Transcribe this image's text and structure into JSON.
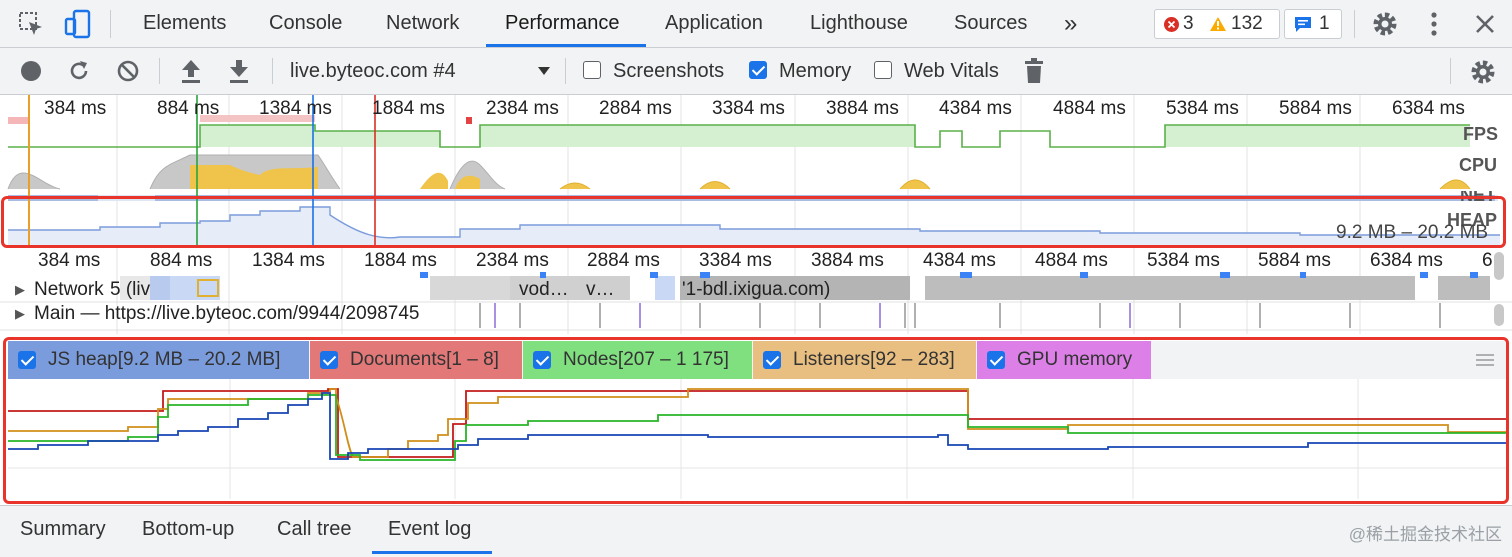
{
  "tabs": [
    {
      "label": "Elements"
    },
    {
      "label": "Console"
    },
    {
      "label": "Network"
    },
    {
      "label": "Performance"
    },
    {
      "label": "Application"
    },
    {
      "label": "Lighthouse"
    },
    {
      "label": "Sources"
    }
  ],
  "more_tabs_glyph": "»",
  "status": {
    "errors": "3",
    "warnings": "132",
    "messages": "1"
  },
  "toolbar": {
    "profile_select": "live.byteoc.com #4",
    "screenshots_label": "Screenshots",
    "memory_label": "Memory",
    "web_vitals_label": "Web Vitals",
    "screenshots_checked": false,
    "memory_checked": true,
    "web_vitals_checked": false
  },
  "overview": {
    "ticks": [
      "384 ms",
      "884 ms",
      "1384 ms",
      "1884 ms",
      "2384 ms",
      "2884 ms",
      "3384 ms",
      "3884 ms",
      "4384 ms",
      "4884 ms",
      "5384 ms",
      "5884 ms",
      "6384 ms"
    ],
    "fps_label": "FPS",
    "cpu_label": "CPU",
    "net_label": "NET",
    "heap_label": "HEAP",
    "heap_range": "9.2 MB – 20.2 MB"
  },
  "flame": {
    "ticks": [
      "384 ms",
      "884 ms",
      "1384 ms",
      "1884 ms",
      "2384 ms",
      "2884 ms",
      "3384 ms",
      "3884 ms",
      "4384 ms",
      "4884 ms",
      "5384 ms",
      "5884 ms",
      "6384 ms",
      "6"
    ],
    "network_track": "Network",
    "network_fragments": [
      "5 (liv",
      "vod…",
      "v…",
      "'1-bdl.ixigua.com)"
    ],
    "main_track": "Main — https://live.byteoc.com/9944/2098745"
  },
  "counters": {
    "legend": [
      {
        "label": "JS heap[9.2 MB – 20.2 MB]",
        "color": "#7b9cdc",
        "line": "#1846b5"
      },
      {
        "label": "Documents[1 – 8]",
        "color": "#e27878",
        "line": "#c41a1a"
      },
      {
        "label": "Nodes[207 – 1 175]",
        "color": "#80e080",
        "line": "#27b527"
      },
      {
        "label": "Listeners[92 – 283]",
        "color": "#e8bf80",
        "line": "#d08f1a"
      },
      {
        "label": "GPU memory",
        "color": "#dc80e8",
        "line": "#b21ac8"
      }
    ]
  },
  "bottom_tabs": [
    {
      "label": "Summary"
    },
    {
      "label": "Bottom-up"
    },
    {
      "label": "Call tree"
    },
    {
      "label": "Event log"
    }
  ],
  "watermark": "@稀土掘金技术社区"
}
